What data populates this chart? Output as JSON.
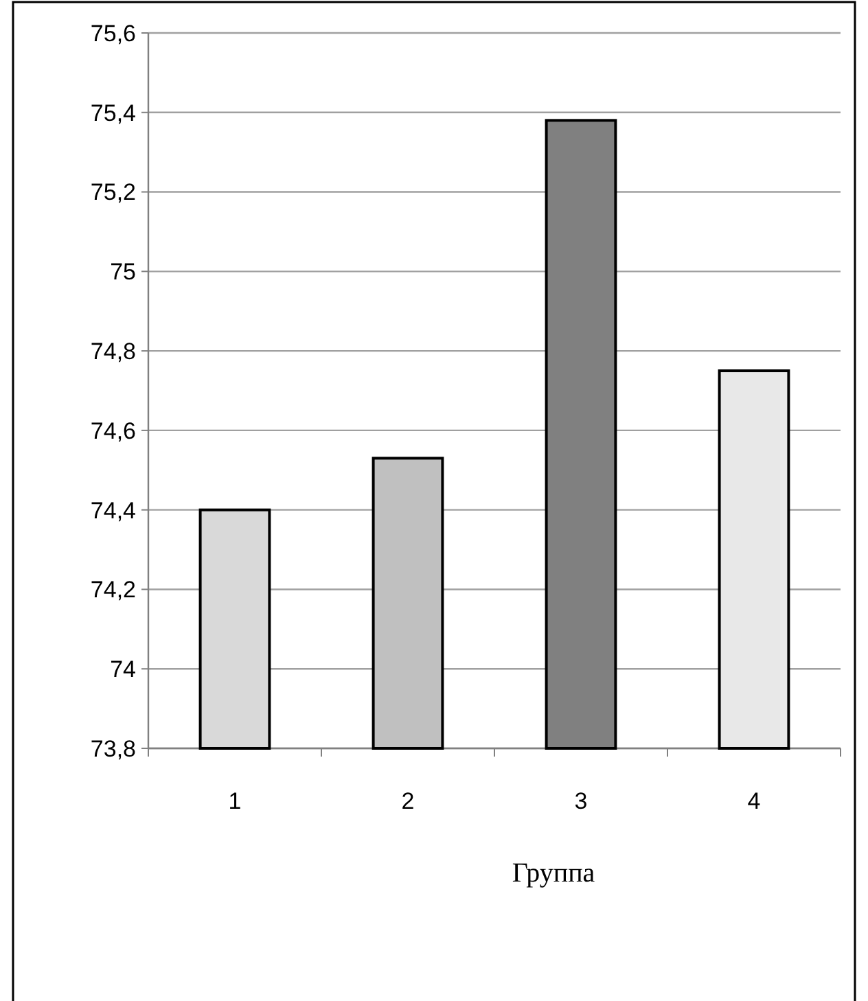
{
  "chart_data": {
    "type": "bar",
    "xlabel": "Группа",
    "categories": [
      "1",
      "2",
      "3",
      "4"
    ],
    "values": [
      74.4,
      74.53,
      75.38,
      74.75
    ],
    "colors": [
      "#d9d9d9",
      "#c0c0c0",
      "#808080",
      "#e8e8e8"
    ],
    "ylim": [
      73.8,
      75.6
    ],
    "yticks": [
      {
        "value": 73.8,
        "label": "73,8"
      },
      {
        "value": 74,
        "label": "74"
      },
      {
        "value": 74.2,
        "label": "74,2"
      },
      {
        "value": 74.4,
        "label": "74,4"
      },
      {
        "value": 74.6,
        "label": "74,6"
      },
      {
        "value": 74.8,
        "label": "74,8"
      },
      {
        "value": 75,
        "label": "75"
      },
      {
        "value": 75.2,
        "label": "75,2"
      },
      {
        "value": 75.4,
        "label": "75,4"
      },
      {
        "value": 75.6,
        "label": "75,6"
      }
    ],
    "grid": "y"
  }
}
